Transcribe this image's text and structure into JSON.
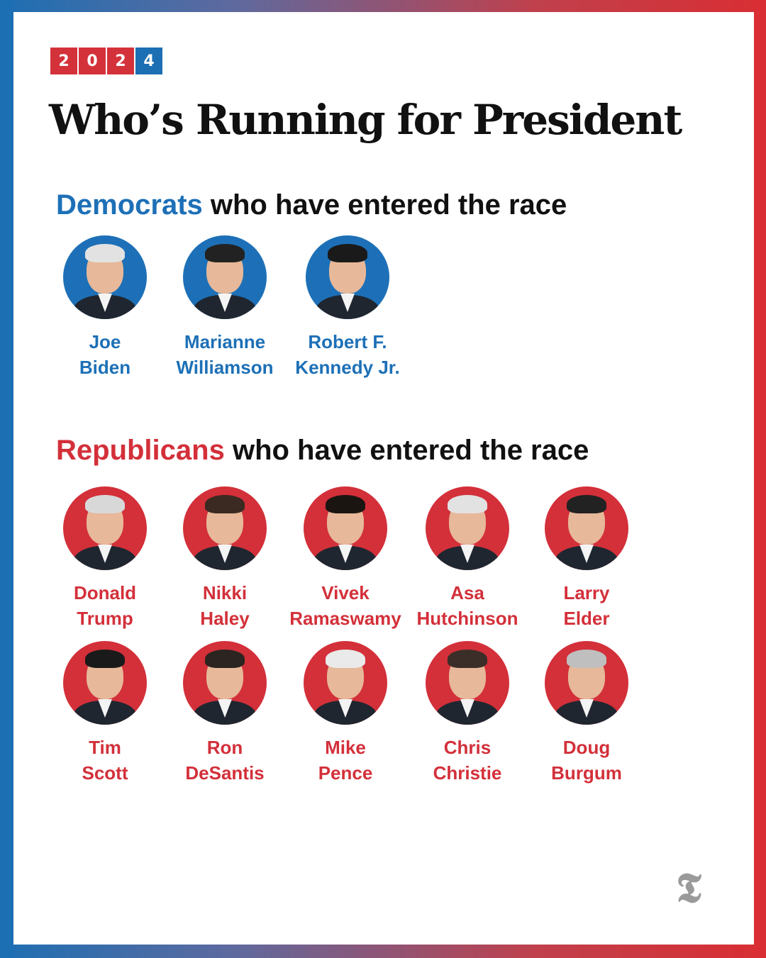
{
  "year_digits": [
    "2",
    "0",
    "2",
    "4"
  ],
  "title": "Who’s Running for President",
  "democrats": {
    "party": "Democrats",
    "suffix": " who have entered the race",
    "candidates": [
      {
        "first": "Joe",
        "last": "Biden"
      },
      {
        "first": "Marianne",
        "last": "Williamson"
      },
      {
        "first": "Robert F.",
        "last": "Kennedy Jr."
      }
    ]
  },
  "republicans": {
    "party": "Republicans",
    "suffix": " who have entered the race",
    "candidates": [
      {
        "first": "Donald",
        "last": "Trump"
      },
      {
        "first": "Nikki",
        "last": "Haley"
      },
      {
        "first": "Vivek",
        "last": "Ramaswamy"
      },
      {
        "first": "Asa",
        "last": "Hutchinson"
      },
      {
        "first": "Larry",
        "last": "Elder"
      },
      {
        "first": "Tim",
        "last": "Scott"
      },
      {
        "first": "Ron",
        "last": "DeSantis"
      },
      {
        "first": "Mike",
        "last": "Pence"
      },
      {
        "first": "Chris",
        "last": "Christie"
      },
      {
        "first": "Doug",
        "last": "Burgum"
      }
    ]
  },
  "logo_icon": "nyt-t-logo-icon",
  "colors": {
    "democrat_blue": "#1d70b7",
    "republican_red": "#d3303a"
  }
}
